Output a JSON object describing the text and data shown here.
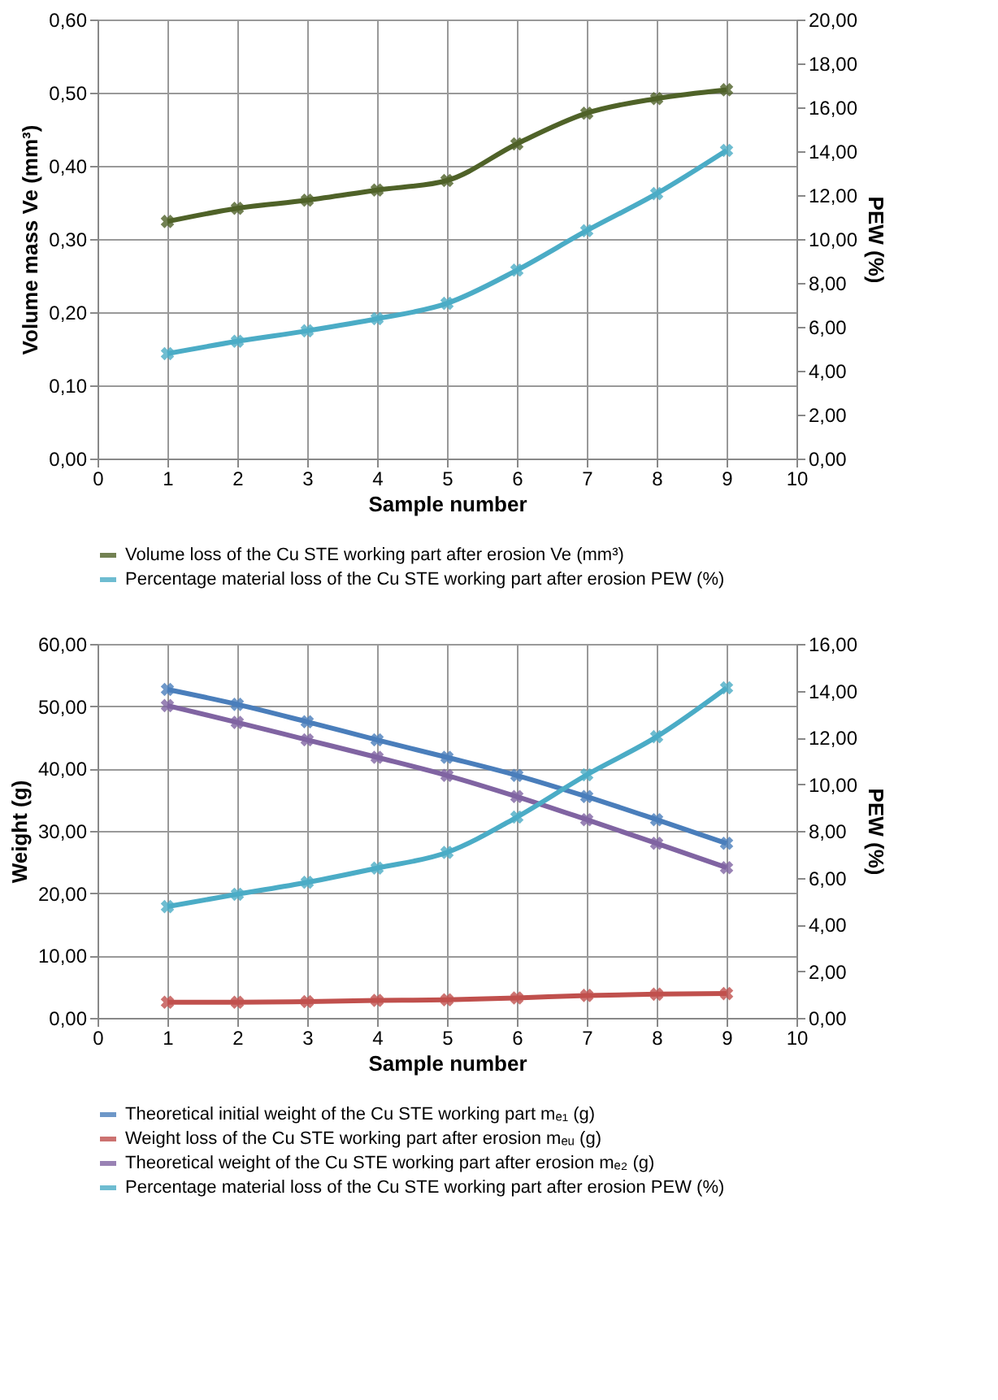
{
  "chart_data": [
    {
      "type": "line",
      "xlabel": "Sample number",
      "ylabel": "Volume mass Ve (mm³)",
      "y2label": "PEW (%)",
      "x": [
        1,
        2,
        3,
        4,
        5,
        6,
        7,
        8,
        9
      ],
      "series": [
        {
          "name": "Volume loss of the Cu STE working part after erosion Ve (mm³)",
          "color": "#4f6228",
          "values": [
            0.324,
            0.342,
            0.353,
            0.367,
            0.38,
            0.43,
            0.472,
            0.492,
            0.504
          ]
        },
        {
          "name": "Percentage material loss of the Cu STE working part after erosion PEW (%)",
          "color": "#4bacc6",
          "axis": "y2",
          "values": [
            4.78,
            5.34,
            5.82,
            6.37,
            7.07,
            8.58,
            10.38,
            12.07,
            14.04
          ]
        }
      ],
      "xlim": [
        0,
        10
      ],
      "xticks": [
        0,
        1,
        2,
        3,
        4,
        5,
        6,
        7,
        8,
        9,
        10
      ],
      "ylim": [
        0,
        0.6
      ],
      "yticks": [
        {
          "value": 0,
          "label": "0,00"
        },
        {
          "value": 0.1,
          "label": "0,10"
        },
        {
          "value": 0.2,
          "label": "0,20"
        },
        {
          "value": 0.3,
          "label": "0,30"
        },
        {
          "value": 0.4,
          "label": "0,40"
        },
        {
          "value": 0.5,
          "label": "0,50"
        },
        {
          "value": 0.6,
          "label": "0,60"
        }
      ],
      "y2lim": [
        0,
        20
      ],
      "y2ticks": [
        {
          "value": 0,
          "label": "0,00"
        },
        {
          "value": 2,
          "label": "2,00"
        },
        {
          "value": 4,
          "label": "4,00"
        },
        {
          "value": 6,
          "label": "6,00"
        },
        {
          "value": 8,
          "label": "8,00"
        },
        {
          "value": 10,
          "label": "10,00"
        },
        {
          "value": 12,
          "label": "12,00"
        },
        {
          "value": 14,
          "label": "14,00"
        },
        {
          "value": 16,
          "label": "16,00"
        },
        {
          "value": 18,
          "label": "18,00"
        },
        {
          "value": 20,
          "label": "20,00"
        }
      ],
      "grid": true,
      "legend": "bottom",
      "marker": "cross",
      "line_style": "solid"
    },
    {
      "type": "line",
      "xlabel": "Sample number",
      "ylabel": "Weight (g)",
      "y2label": "PEW (%)",
      "x": [
        1,
        2,
        3,
        4,
        5,
        6,
        7,
        8,
        9
      ],
      "series": [
        {
          "name": "Theoretical initial weight of the Cu STE working part mₑ₁ (g)",
          "color": "#4a7ebb",
          "values": [
            52.7,
            50.3,
            47.5,
            44.6,
            41.8,
            38.9,
            35.5,
            31.8,
            28.0
          ]
        },
        {
          "name": "Weight loss of the Cu STE working part after erosion mₑᵤ (g)",
          "color": "#c0504d",
          "values": [
            2.5,
            2.5,
            2.6,
            2.8,
            2.9,
            3.2,
            3.6,
            3.8,
            3.9
          ]
        },
        {
          "name": "Theoretical weight of the Cu STE working part after erosion mₑ₂ (g)",
          "color": "#8064a2",
          "values": [
            50.1,
            47.4,
            44.6,
            41.8,
            38.9,
            35.5,
            31.8,
            28.0,
            24.1
          ]
        },
        {
          "name": "Percentage material loss of the Cu STE working part after erosion PEW (%)",
          "color": "#4bacc6",
          "axis": "y2",
          "values": [
            4.76,
            5.29,
            5.8,
            6.41,
            7.08,
            8.59,
            10.4,
            12.03,
            14.12
          ]
        }
      ],
      "xlim": [
        0,
        10
      ],
      "xticks": [
        0,
        1,
        2,
        3,
        4,
        5,
        6,
        7,
        8,
        9,
        10
      ],
      "ylim": [
        0,
        60
      ],
      "yticks": [
        {
          "value": 0,
          "label": "0,00"
        },
        {
          "value": 10,
          "label": "10,00"
        },
        {
          "value": 20,
          "label": "20,00"
        },
        {
          "value": 30,
          "label": "30,00"
        },
        {
          "value": 40,
          "label": "40,00"
        },
        {
          "value": 50,
          "label": "50,00"
        },
        {
          "value": 60,
          "label": "60,00"
        }
      ],
      "y2lim": [
        0,
        16
      ],
      "y2ticks": [
        {
          "value": 0,
          "label": "0,00"
        },
        {
          "value": 2,
          "label": "2,00"
        },
        {
          "value": 4,
          "label": "4,00"
        },
        {
          "value": 6,
          "label": "6,00"
        },
        {
          "value": 8,
          "label": "8,00"
        },
        {
          "value": 10,
          "label": "10,00"
        },
        {
          "value": 12,
          "label": "12,00"
        },
        {
          "value": 14,
          "label": "14,00"
        },
        {
          "value": 16,
          "label": "16,00"
        }
      ],
      "grid": true,
      "legend": "bottom",
      "marker": "cross",
      "line_style": "solid"
    }
  ]
}
